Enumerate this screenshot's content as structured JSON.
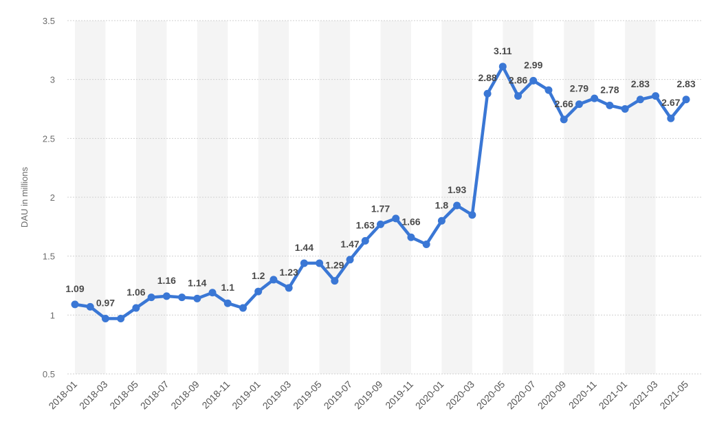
{
  "chart_data": {
    "type": "line",
    "ylabel": "DAU in millions",
    "xlabel": "",
    "ylim": [
      0.5,
      3.5
    ],
    "yticks": [
      "0.5",
      "1",
      "1.5",
      "2",
      "2.5",
      "3",
      "3.5"
    ],
    "grid": true,
    "line_color": "#3a77d5",
    "band_color": "#f4f4f4",
    "x": [
      "2018-01",
      "2018-02",
      "2018-03",
      "2018-04",
      "2018-05",
      "2018-06",
      "2018-07",
      "2018-08",
      "2018-09",
      "2018-10",
      "2018-11",
      "2018-12",
      "2019-01",
      "2019-02",
      "2019-03",
      "2019-04",
      "2019-05",
      "2019-06",
      "2019-07",
      "2019-08",
      "2019-09",
      "2019-10",
      "2019-11",
      "2019-12",
      "2020-01",
      "2020-02",
      "2020-03",
      "2020-04",
      "2020-05",
      "2020-06",
      "2020-07",
      "2020-08",
      "2020-09",
      "2020-10",
      "2020-11",
      "2020-12",
      "2021-01",
      "2021-02",
      "2021-03",
      "2021-04",
      "2021-05"
    ],
    "xtick_labels": [
      "2018-01",
      "2018-03",
      "2018-05",
      "2018-07",
      "2018-09",
      "2018-11",
      "2019-01",
      "2019-03",
      "2019-05",
      "2019-07",
      "2019-09",
      "2019-11",
      "2020-01",
      "2020-03",
      "2020-05",
      "2020-07",
      "2020-09",
      "2020-11",
      "2021-01",
      "2021-03",
      "2021-05"
    ],
    "values": [
      1.09,
      1.07,
      0.97,
      0.97,
      1.06,
      1.15,
      1.16,
      1.15,
      1.14,
      1.19,
      1.1,
      1.06,
      1.2,
      1.3,
      1.23,
      1.44,
      1.44,
      1.29,
      1.47,
      1.63,
      1.77,
      1.82,
      1.66,
      1.6,
      1.8,
      1.93,
      1.85,
      2.88,
      3.11,
      2.86,
      2.99,
      2.91,
      2.66,
      2.79,
      2.84,
      2.78,
      2.75,
      2.83,
      2.86,
      2.67,
      2.83
    ],
    "data_labels": [
      {
        "i": 0,
        "text": "1.09"
      },
      {
        "i": 2,
        "text": "0.97"
      },
      {
        "i": 4,
        "text": "1.06"
      },
      {
        "i": 6,
        "text": "1.16"
      },
      {
        "i": 8,
        "text": "1.14"
      },
      {
        "i": 10,
        "text": "1.1"
      },
      {
        "i": 12,
        "text": "1.2"
      },
      {
        "i": 14,
        "text": "1.23"
      },
      {
        "i": 15,
        "text": "1.44"
      },
      {
        "i": 17,
        "text": "1.29"
      },
      {
        "i": 18,
        "text": "1.47"
      },
      {
        "i": 19,
        "text": "1.63"
      },
      {
        "i": 20,
        "text": "1.77"
      },
      {
        "i": 22,
        "text": "1.66"
      },
      {
        "i": 24,
        "text": "1.8"
      },
      {
        "i": 25,
        "text": "1.93"
      },
      {
        "i": 27,
        "text": "2.88"
      },
      {
        "i": 28,
        "text": "3.11"
      },
      {
        "i": 29,
        "text": "2.86"
      },
      {
        "i": 30,
        "text": "2.99"
      },
      {
        "i": 32,
        "text": "2.66"
      },
      {
        "i": 33,
        "text": "2.79"
      },
      {
        "i": 35,
        "text": "2.78"
      },
      {
        "i": 37,
        "text": "2.83"
      },
      {
        "i": 39,
        "text": "2.67"
      },
      {
        "i": 40,
        "text": "2.83"
      }
    ]
  }
}
